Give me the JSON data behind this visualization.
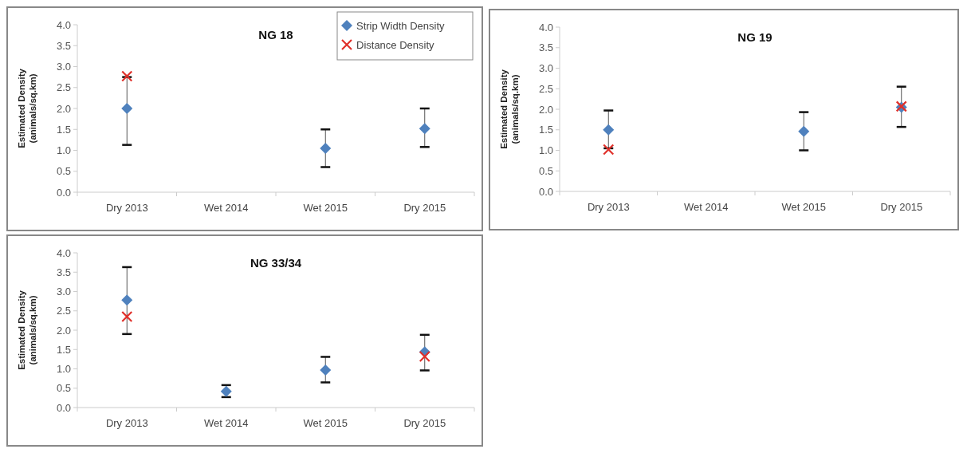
{
  "chart_data": [
    {
      "type": "scatter",
      "title": "NG 18",
      "ylabel": "Estimated Density\n(animals/sq.km)",
      "categories": [
        "Dry 2013",
        "Wet 2014",
        "Wet 2015",
        "Dry 2015"
      ],
      "ylim": [
        0,
        4
      ],
      "yticks": [
        {
          "value": 0,
          "label": "0.0"
        },
        {
          "value": 0.5,
          "label": "0.5"
        },
        {
          "value": 1,
          "label": "1.0"
        },
        {
          "value": 1.5,
          "label": "1.5"
        },
        {
          "value": 2,
          "label": "2.0"
        },
        {
          "value": 2.5,
          "label": "2.5"
        },
        {
          "value": 3,
          "label": "3.0"
        },
        {
          "value": 3.5,
          "label": "3.5"
        },
        {
          "value": 4,
          "label": "4.0"
        }
      ],
      "legend": "top right",
      "series": [
        {
          "name": "Strip Width Density",
          "color": "#4f81bd",
          "marker": "diamond",
          "values": [
            2.0,
            null,
            1.05,
            1.52
          ],
          "errors": [
            [
              1.13,
              2.75
            ],
            null,
            [
              0.6,
              1.5
            ],
            [
              1.08,
              2.0
            ]
          ]
        },
        {
          "name": "Distance Density",
          "color": "#e0302a",
          "marker": "cross",
          "values": [
            2.77,
            null,
            null,
            null
          ]
        }
      ]
    },
    {
      "type": "scatter",
      "title": "NG 19",
      "ylabel": "Estimated Density\n(animals/sq.km)",
      "categories": [
        "Dry 2013",
        "Wet 2014",
        "Wet 2015",
        "Dry 2015"
      ],
      "ylim": [
        0,
        4
      ],
      "yticks": [
        {
          "value": 0,
          "label": "0.0"
        },
        {
          "value": 0.5,
          "label": "0.5"
        },
        {
          "value": 1,
          "label": "1.0"
        },
        {
          "value": 1.5,
          "label": "1.5"
        },
        {
          "value": 2,
          "label": "2.0"
        },
        {
          "value": 2.5,
          "label": "2.5"
        },
        {
          "value": 3,
          "label": "3.0"
        },
        {
          "value": 3.5,
          "label": "3.5"
        },
        {
          "value": 4,
          "label": "4.0"
        }
      ],
      "series": [
        {
          "color": "#4f81bd",
          "marker": "diamond",
          "values": [
            1.5,
            null,
            1.46,
            2.05
          ],
          "errors": [
            [
              1.05,
              1.97
            ],
            null,
            [
              1.0,
              1.93
            ],
            [
              1.57,
              2.55
            ]
          ]
        },
        {
          "color": "#e0302a",
          "marker": "cross",
          "values": [
            1.02,
            null,
            null,
            2.07
          ]
        }
      ]
    },
    {
      "type": "scatter",
      "title": "NG 33/34",
      "ylabel": "Estimated Density\n(animals/sq.km)",
      "categories": [
        "Dry 2013",
        "Wet 2014",
        "Wet 2015",
        "Dry 2015"
      ],
      "ylim": [
        0,
        4
      ],
      "yticks": [
        {
          "value": 0,
          "label": "0.0"
        },
        {
          "value": 0.5,
          "label": "0.5"
        },
        {
          "value": 1,
          "label": "1.0"
        },
        {
          "value": 1.5,
          "label": "1.5"
        },
        {
          "value": 2,
          "label": "2.0"
        },
        {
          "value": 2.5,
          "label": "2.5"
        },
        {
          "value": 3,
          "label": "3.0"
        },
        {
          "value": 3.5,
          "label": "3.5"
        },
        {
          "value": 4,
          "label": "4.0"
        }
      ],
      "series": [
        {
          "color": "#4f81bd",
          "marker": "diamond",
          "values": [
            2.78,
            0.42,
            0.97,
            1.44
          ],
          "errors": [
            [
              1.9,
              3.63
            ],
            [
              0.27,
              0.58
            ],
            [
              0.65,
              1.31
            ],
            [
              0.96,
              1.88
            ]
          ]
        },
        {
          "color": "#e0302a",
          "marker": "cross",
          "values": [
            2.35,
            null,
            null,
            1.32
          ]
        }
      ]
    }
  ]
}
